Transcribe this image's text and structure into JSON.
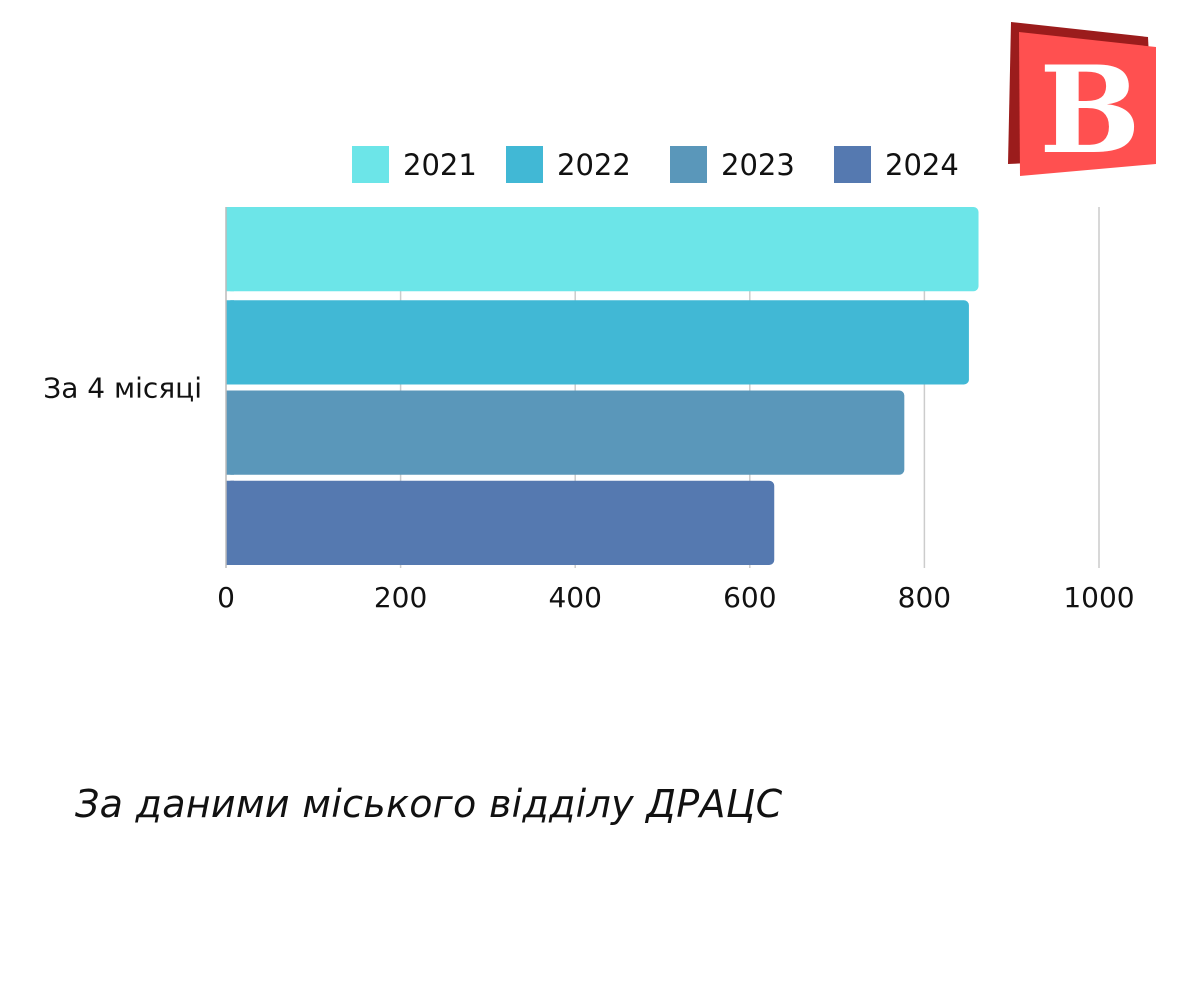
{
  "chart_data": {
    "type": "bar",
    "orientation": "horizontal",
    "categories": [
      "За 4 місяці"
    ],
    "series": [
      {
        "name": "2021",
        "values": [
          862
        ],
        "color": "#6ce5e8"
      },
      {
        "name": "2022",
        "values": [
          851
        ],
        "color": "#41b8d5"
      },
      {
        "name": "2023",
        "values": [
          777
        ],
        "color": "#5a97ba"
      },
      {
        "name": "2024",
        "values": [
          628
        ],
        "color": "#5579b0"
      }
    ],
    "xlim": [
      0,
      1000
    ],
    "x_ticks": [
      0,
      200,
      400,
      600,
      800,
      1000
    ],
    "grid": "vertical",
    "legend_position": "top",
    "title": "",
    "xlabel": "",
    "ylabel": ""
  },
  "source_note": "За даними міського відділу ДРАЦС",
  "logo": {
    "letter": "B",
    "color": "#ff5050",
    "shadow_color": "#9b1c1c"
  }
}
